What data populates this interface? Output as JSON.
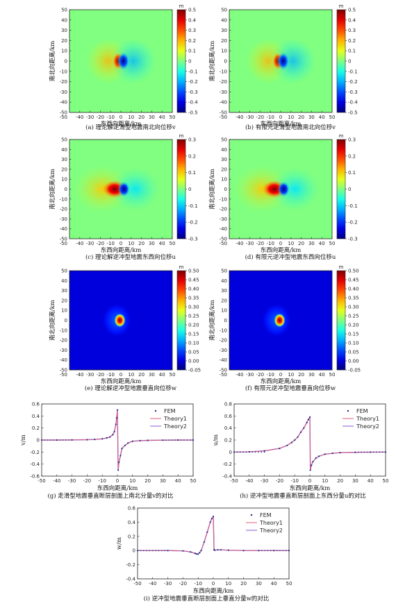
{
  "chart_data": [
    {
      "type": "heatmap",
      "id": "a",
      "caption": "(a) 理论解走滑型地震南北向位移v",
      "xlabel": "东西向距离/km",
      "ylabel": "南北向距离/km",
      "xlim": [
        -50,
        50
      ],
      "ylim": [
        -50,
        50
      ],
      "xticks": [
        -40,
        -30,
        -20,
        -10,
        0,
        10,
        20,
        30,
        40,
        50
      ],
      "yticks": [
        -40,
        -30,
        -20,
        -10,
        0,
        10,
        20,
        30,
        40,
        50
      ],
      "colorbar_unit": "m",
      "colorbar_ticks": [
        "0.5",
        "0.4",
        "0.3",
        "0.2",
        "0.1",
        "0",
        "-0.1",
        "-0.2",
        "-0.3",
        "-0.4",
        "-0.5"
      ],
      "clim": [
        -0.5,
        0.5
      ],
      "pattern": "strike-slip"
    },
    {
      "type": "heatmap",
      "id": "b",
      "caption": "(b) 有限元走滑型地震南北向位移v",
      "xlabel": "东西向距离/km",
      "ylabel": "南北向距离/km",
      "xlim": [
        -50,
        50
      ],
      "ylim": [
        -50,
        50
      ],
      "xticks": [
        -40,
        -30,
        -20,
        -10,
        0,
        10,
        20,
        30,
        40,
        50
      ],
      "yticks": [
        -40,
        -30,
        -20,
        -10,
        0,
        10,
        20,
        30,
        40,
        50
      ],
      "colorbar_unit": "m",
      "colorbar_ticks": [
        "0.5",
        "0.4",
        "0.3",
        "0.2",
        "0.1",
        "0",
        "-0.1",
        "-0.2",
        "-0.3",
        "-0.4",
        "-0.5"
      ],
      "clim": [
        -0.5,
        0.5
      ],
      "pattern": "strike-slip"
    },
    {
      "type": "heatmap",
      "id": "c",
      "caption": "(c) 理论解逆冲型地震东西向位移u",
      "xlabel": "东西向距离/km",
      "ylabel": "南北向距离/km",
      "xlim": [
        -50,
        50
      ],
      "ylim": [
        -50,
        50
      ],
      "xticks": [
        -40,
        -30,
        -20,
        -10,
        0,
        10,
        20,
        30,
        40,
        50
      ],
      "yticks": [
        -40,
        -30,
        -20,
        -10,
        0,
        10,
        20,
        30,
        40,
        50
      ],
      "colorbar_unit": "m",
      "colorbar_ticks": [
        "0.3",
        "0.2",
        "0.1",
        "0",
        "-0.1",
        "-0.2",
        "-0.3"
      ],
      "clim": [
        -0.3,
        0.3
      ],
      "pattern": "thrust-u"
    },
    {
      "type": "heatmap",
      "id": "d",
      "caption": "(d) 有限元逆冲型地震东西向位移u",
      "xlabel": "东西向距离/km",
      "ylabel": "南北向距离/km",
      "xlim": [
        -50,
        50
      ],
      "ylim": [
        -50,
        50
      ],
      "xticks": [
        -40,
        -30,
        -20,
        -10,
        0,
        10,
        20,
        30,
        40,
        50
      ],
      "yticks": [
        -40,
        -30,
        -20,
        -10,
        0,
        10,
        20,
        30,
        40,
        50
      ],
      "colorbar_unit": "m",
      "colorbar_ticks": [
        "0.3",
        "0.2",
        "0.1",
        "0",
        "-0.1",
        "-0.2",
        "-0.3"
      ],
      "clim": [
        -0.3,
        0.3
      ],
      "pattern": "thrust-u"
    },
    {
      "type": "heatmap",
      "id": "e",
      "caption": "(e) 理论解逆冲型地震垂直向位移w",
      "xlabel": "东西向距离/km",
      "ylabel": "南北向距离/km",
      "xlim": [
        -50,
        50
      ],
      "ylim": [
        -50,
        50
      ],
      "xticks": [
        -40,
        -30,
        -20,
        -10,
        0,
        10,
        20,
        30,
        40,
        50
      ],
      "yticks": [
        -40,
        -30,
        -20,
        -10,
        0,
        10,
        20,
        30,
        40,
        50
      ],
      "colorbar_unit": "m",
      "colorbar_ticks": [
        "0.50",
        "0.45",
        "0.40",
        "0.35",
        "0.30",
        "0.25",
        "0.20",
        "0.15",
        "0.10",
        "0.05",
        "0.00",
        "-0.05"
      ],
      "clim": [
        -0.05,
        0.5
      ],
      "pattern": "thrust-w"
    },
    {
      "type": "heatmap",
      "id": "f",
      "caption": "(f) 有限元逆冲型地震垂直向位移w",
      "xlabel": "东西向距离/km",
      "ylabel": "南北向距离/km",
      "xlim": [
        -50,
        50
      ],
      "ylim": [
        -50,
        50
      ],
      "xticks": [
        -40,
        -30,
        -20,
        -10,
        0,
        10,
        20,
        30,
        40,
        50
      ],
      "yticks": [
        -40,
        -30,
        -20,
        -10,
        0,
        10,
        20,
        30,
        40,
        50
      ],
      "colorbar_unit": "m",
      "colorbar_ticks": [
        "0.50",
        "0.45",
        "0.40",
        "0.35",
        "0.30",
        "0.25",
        "0.20",
        "0.15",
        "0.10",
        "0.05",
        "0.00",
        "-0.05"
      ],
      "clim": [
        -0.05,
        0.5
      ],
      "pattern": "thrust-w"
    },
    {
      "type": "line",
      "id": "g",
      "caption": "(g) 走滑型地震垂直断层剖面上南北分量v的对比",
      "xlabel": "东西向距离/km",
      "ylabel": "v/m",
      "xlim": [
        -50,
        50
      ],
      "ylim": [
        -0.6,
        0.6
      ],
      "xticks": [
        -50,
        -40,
        -30,
        -20,
        -10,
        0,
        10,
        20,
        30,
        40,
        50
      ],
      "yticks": [
        -0.6,
        -0.4,
        -0.2,
        0.0,
        0.2,
        0.4,
        0.6
      ],
      "ytick_labels": [
        "-0.6",
        "-0.4",
        "-0.2",
        "0",
        "0.2",
        "0.4",
        "0.6"
      ],
      "legend_position": "top-right",
      "series": [
        {
          "name": "FEM",
          "style": "dots",
          "color": "#1a2a8a"
        },
        {
          "name": "Theory1",
          "style": "line",
          "color": "#e0607a"
        },
        {
          "name": "Theory2",
          "style": "line",
          "color": "#8a5acd"
        }
      ],
      "x": [
        -50,
        -40,
        -30,
        -20,
        -15,
        -10,
        -7,
        -5,
        -3,
        -2,
        -1,
        -0.5,
        0,
        0.5,
        1,
        2,
        3,
        5,
        7,
        10,
        15,
        20,
        30,
        40,
        50
      ],
      "y": [
        0,
        0,
        0.002,
        0.006,
        0.01,
        0.02,
        0.035,
        0.05,
        0.09,
        0.14,
        0.26,
        0.37,
        0.5,
        -0.5,
        -0.37,
        -0.26,
        -0.14,
        -0.09,
        -0.05,
        -0.02,
        -0.01,
        -0.006,
        -0.002,
        0,
        0
      ]
    },
    {
      "type": "line",
      "id": "h",
      "caption": "(h) 逆冲型地震垂直断层剖面上东西分量u的对比",
      "xlabel": "东西向距离/km",
      "ylabel": "u/m",
      "xlim": [
        -50,
        50
      ],
      "ylim": [
        -0.4,
        0.8
      ],
      "xticks": [
        -50,
        -40,
        -30,
        -20,
        -10,
        0,
        10,
        20,
        30,
        40,
        50
      ],
      "yticks": [
        -0.4,
        -0.2,
        0.0,
        0.2,
        0.4,
        0.6,
        0.8
      ],
      "ytick_labels": [
        "-0.4",
        "-0.2",
        "0",
        "0.2",
        "0.4",
        "0.6",
        "0.8"
      ],
      "legend_position": "top-right",
      "series": [
        {
          "name": "FEM",
          "style": "dots",
          "color": "#1a2a8a"
        },
        {
          "name": "Theory1",
          "style": "line",
          "color": "#e0607a"
        },
        {
          "name": "Theory2",
          "style": "line",
          "color": "#8a5acd"
        }
      ],
      "x": [
        -50,
        -40,
        -30,
        -20,
        -15,
        -12,
        -10,
        -8,
        -6,
        -4,
        -2,
        -1,
        0,
        0.3,
        1,
        2,
        4,
        6,
        10,
        15,
        20,
        30,
        40,
        50
      ],
      "y": [
        0,
        0.005,
        0.02,
        0.06,
        0.11,
        0.16,
        0.2,
        0.25,
        0.33,
        0.4,
        0.49,
        0.54,
        0.58,
        -0.3,
        -0.22,
        -0.16,
        -0.1,
        -0.07,
        -0.035,
        -0.02,
        -0.01,
        -0.004,
        -0.001,
        0
      ]
    },
    {
      "type": "line",
      "id": "i",
      "caption": "(i) 逆冲型地震垂直断层剖面上垂直分量w的对比",
      "xlabel": "东西向距离/km",
      "ylabel": "w/m",
      "xlim": [
        -50,
        50
      ],
      "ylim": [
        -0.4,
        0.6
      ],
      "xticks": [
        -50,
        -40,
        -30,
        -20,
        -10,
        0,
        10,
        20,
        30,
        40,
        50
      ],
      "yticks": [
        -0.4,
        -0.2,
        0.0,
        0.2,
        0.4,
        0.6
      ],
      "ytick_labels": [
        "-0.4",
        "-0.2",
        "0",
        "0.2",
        "0.4",
        "0.6"
      ],
      "legend_position": "top-right",
      "series": [
        {
          "name": "FEM",
          "style": "dots",
          "color": "#1a2a8a"
        },
        {
          "name": "Theory1",
          "style": "line",
          "color": "#e0607a"
        },
        {
          "name": "Theory2",
          "style": "line",
          "color": "#8a5acd"
        }
      ],
      "x": [
        -50,
        -30,
        -20,
        -15,
        -12,
        -11,
        -10,
        -9,
        -8,
        -6,
        -4,
        -2,
        -1,
        0,
        0.5,
        1,
        3,
        5,
        10,
        20,
        30,
        40,
        50
      ],
      "y": [
        0,
        0,
        -0.005,
        -0.02,
        -0.04,
        -0.05,
        -0.05,
        -0.03,
        0.0,
        0.12,
        0.26,
        0.4,
        0.45,
        0.48,
        0.01,
        0.005,
        0.01,
        0.01,
        0.005,
        0,
        0,
        0,
        0
      ]
    }
  ]
}
